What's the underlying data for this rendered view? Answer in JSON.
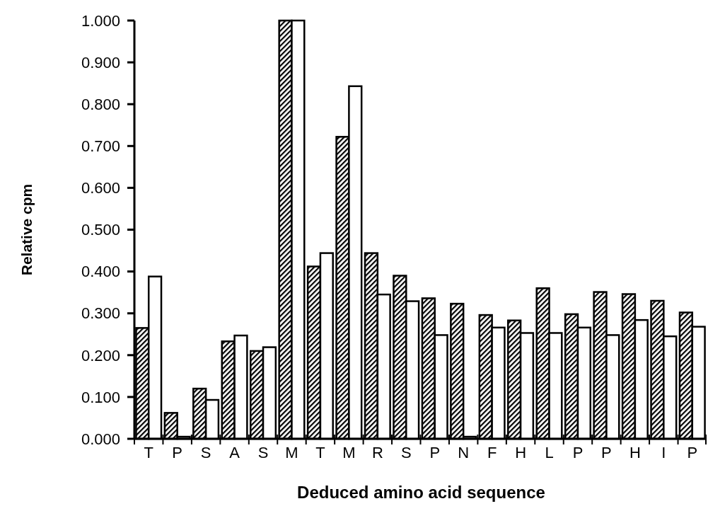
{
  "chart_data": {
    "type": "bar",
    "xlabel": "Deduced amino acid sequence",
    "ylabel": "Relative cpm",
    "categories": [
      "T",
      "P",
      "S",
      "A",
      "S",
      "M",
      "T",
      "M",
      "R",
      "S",
      "P",
      "N",
      "F",
      "H",
      "L",
      "P",
      "P",
      "H",
      "I",
      "P"
    ],
    "series": [
      {
        "color": "#000000",
        "values": [
          0.265,
          0.062,
          0.12,
          0.233,
          0.21,
          1.0,
          0.412,
          0.722,
          0.444,
          0.39,
          0.336,
          0.323,
          0.296,
          0.283,
          0.36,
          0.298,
          0.351,
          0.346,
          0.33,
          0.302
        ]
      },
      {
        "color": "#ffffff",
        "values": [
          0.388,
          0.005,
          0.093,
          0.247,
          0.219,
          1.0,
          0.444,
          0.843,
          0.345,
          0.329,
          0.248,
          0.005,
          0.266,
          0.253,
          0.253,
          0.266,
          0.248,
          0.284,
          0.245,
          0.268
        ]
      }
    ],
    "ylim": [
      0,
      1
    ],
    "yticks": [
      {
        "value": 0,
        "label": "0.000"
      },
      {
        "value": 0.1,
        "label": "0.100"
      },
      {
        "value": 0.2,
        "label": "0.200"
      },
      {
        "value": 0.3,
        "label": "0.300"
      },
      {
        "value": 0.4,
        "label": "0.400"
      },
      {
        "value": 0.5,
        "label": "0.500"
      },
      {
        "value": 0.6,
        "label": "0.600"
      },
      {
        "value": 0.7,
        "label": "0.700"
      },
      {
        "value": 0.8,
        "label": "0.800"
      },
      {
        "value": 0.9,
        "label": "0.900"
      },
      {
        "value": 1,
        "label": "1.000"
      }
    ],
    "grid": false
  }
}
